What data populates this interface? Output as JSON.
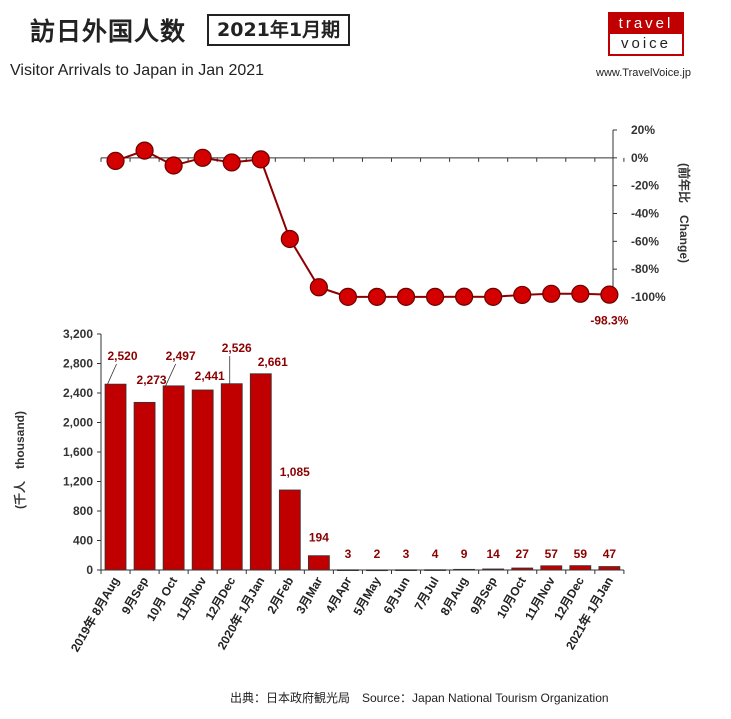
{
  "header": {
    "title_jp": "訪日外国人数",
    "period": "2021年1月期",
    "title_en": "Visitor Arrivals to Japan in Jan 2021",
    "logo_top": "travel",
    "logo_bottom": "voice",
    "site": "www.TravelVoice.jp"
  },
  "footer": {
    "source": "出典：日本政府観光局　Source：Japan National Tourism Organization"
  },
  "colors": {
    "bar": "#c00000",
    "line": "#8b0000",
    "marker": "#d40000",
    "label": "#8b0000"
  },
  "chart_data": [
    {
      "type": "line",
      "ylabel": "(前年比　Change)",
      "ylim": [
        -100,
        20
      ],
      "yticks": [
        "20%",
        "0%",
        "-20%",
        "-40%",
        "-60%",
        "-80%",
        "-100%"
      ],
      "yticks_values": [
        20,
        0,
        -20,
        -40,
        -60,
        -80,
        -100
      ],
      "values": [
        -2.2,
        5.2,
        -5.5,
        0.0,
        -3.3,
        -1.1,
        -58.3,
        -93.0,
        -99.9,
        -99.9,
        -99.9,
        -99.9,
        -99.8,
        -99.9,
        -98.5,
        -97.7,
        -97.7,
        -98.3
      ],
      "annotation": "-98.3%",
      "axis_side": "right"
    },
    {
      "type": "bar",
      "ylabel": "(千人　thousand)",
      "ylim": [
        0,
        3200
      ],
      "yticks": [
        "0",
        "400",
        "800",
        "1,200",
        "1,600",
        "2,000",
        "2,400",
        "2,800",
        "3,200"
      ],
      "yticks_values": [
        0,
        400,
        800,
        1200,
        1600,
        2000,
        2400,
        2800,
        3200
      ],
      "categories": [
        "2019年 8月Aug",
        "9月Sep",
        "10月 Oct",
        "11月Nov",
        "12月Dec",
        "2020年 1月Jan",
        "2月Feb",
        "3月Mar",
        "4月Apr",
        "5月May",
        "6月Jun",
        "7月Jul",
        "8月Aug",
        "9月Sep",
        "10月Oct",
        "11月Nov",
        "12月Dec",
        "2021年 1月Jan"
      ],
      "values": [
        2520,
        2273,
        2497,
        2441,
        2526,
        2661,
        1085,
        194,
        3,
        2,
        3,
        4,
        9,
        14,
        27,
        57,
        59,
        47
      ],
      "data_labels": [
        "2,520",
        "2,273",
        "2,497",
        "2,441",
        "2,526",
        "2,661",
        "1,085",
        "194",
        "3",
        "2",
        "3",
        "4",
        "9",
        "14",
        "27",
        "57",
        "59",
        "47"
      ]
    }
  ]
}
